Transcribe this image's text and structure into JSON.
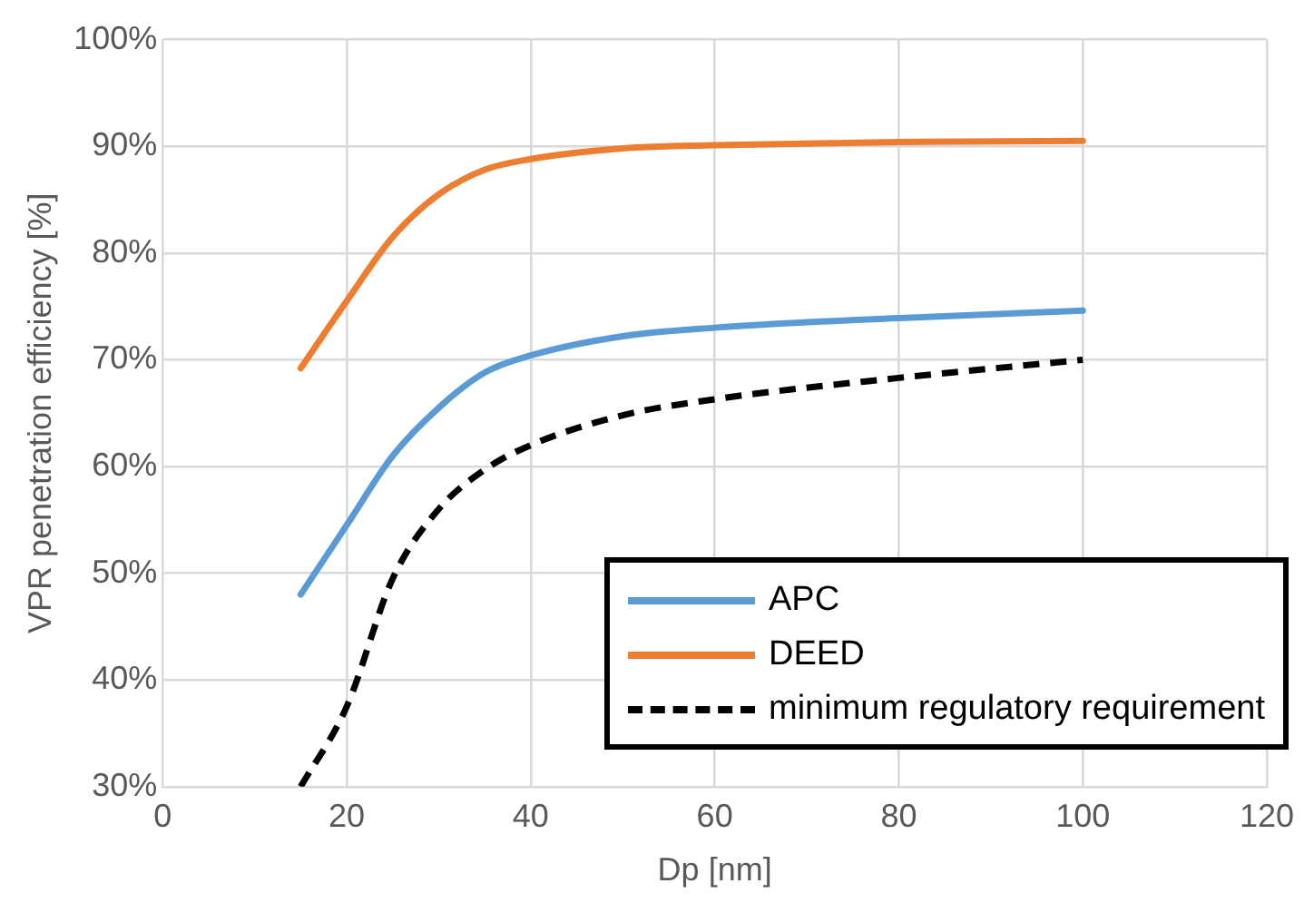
{
  "chart_data": {
    "type": "line",
    "xlabel": "Dp [nm]",
    "ylabel": "VPR penetration efficiency [%]",
    "xlim": [
      0,
      120
    ],
    "xticks": [
      0,
      20,
      40,
      60,
      80,
      100,
      120
    ],
    "ylim": [
      30,
      100
    ],
    "yticks": [
      {
        "value": 30,
        "label": "30%"
      },
      {
        "value": 40,
        "label": "40%"
      },
      {
        "value": 50,
        "label": "50%"
      },
      {
        "value": 60,
        "label": "60%"
      },
      {
        "value": 70,
        "label": "70%"
      },
      {
        "value": 80,
        "label": "80%"
      },
      {
        "value": 90,
        "label": "90%"
      },
      {
        "value": 100,
        "label": "100%"
      }
    ],
    "grid": true,
    "legend": "bottom right",
    "marker": "none",
    "series": [
      {
        "name": "APC",
        "color": "#5b9bd5",
        "line_style": "solid",
        "x": [
          15,
          20,
          25,
          30,
          35,
          40,
          50,
          60,
          80,
          100
        ],
        "values": [
          48,
          54.5,
          61,
          65.5,
          68.8,
          70.4,
          72.2,
          73,
          73.9,
          74.6
        ]
      },
      {
        "name": "DEED",
        "color": "#ed7d31",
        "line_style": "solid",
        "x": [
          15,
          20,
          25,
          30,
          35,
          40,
          50,
          60,
          80,
          100
        ],
        "values": [
          69.2,
          75.5,
          81.5,
          85.5,
          87.8,
          88.8,
          89.8,
          90.1,
          90.4,
          90.5
        ]
      },
      {
        "name": "minimum regulatory requirement",
        "color": "#000000",
        "line_style": "dashed",
        "x": [
          15,
          20,
          25,
          30,
          35,
          40,
          50,
          60,
          80,
          100
        ],
        "values": [
          30,
          37.5,
          49.5,
          56,
          59.7,
          62,
          64.8,
          66.3,
          68.3,
          70
        ]
      }
    ]
  }
}
